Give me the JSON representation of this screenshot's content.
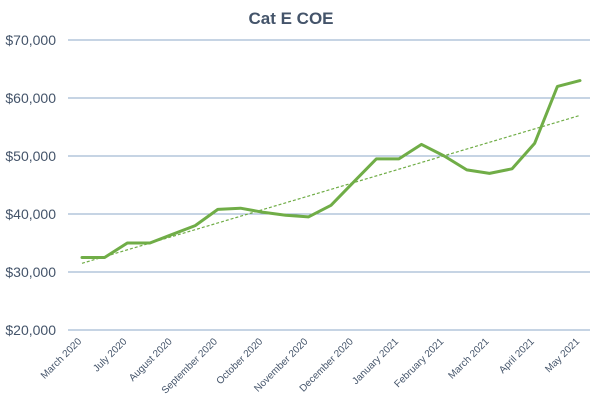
{
  "chart_data": {
    "type": "line",
    "title": "Cat E COE",
    "xlabel": "",
    "ylabel": "",
    "ylim": [
      20000,
      70000
    ],
    "yticks": [
      20000,
      30000,
      40000,
      50000,
      60000,
      70000
    ],
    "ytick_labels": [
      "$20,000",
      "$30,000",
      "$40,000",
      "$50,000",
      "$60,000",
      "$70,000"
    ],
    "grid": true,
    "legend": "none",
    "colors": {
      "series": "#70ad47",
      "trendline": "#70ad47",
      "grid": "#8ea9c9",
      "text": "#44546a"
    },
    "x_tick_labels": [
      "March 2020",
      "July 2020",
      "August 2020",
      "September 2020",
      "October 2020",
      "November 2020",
      "December 2020",
      "January 2021",
      "February 2021",
      "March 2021",
      "April 2021",
      "May 2021"
    ],
    "series": [
      {
        "values": [
          32500,
          32500,
          35000,
          35000,
          36500,
          38000,
          40800,
          41000,
          40300,
          39800,
          39500,
          41500,
          45500,
          49500,
          49500,
          52000,
          50000,
          47600,
          47000,
          47800,
          52200,
          62000,
          63000
        ]
      }
    ],
    "trendline": {
      "type": "linear",
      "style": "dashed",
      "values": [
        31500,
        57000
      ]
    }
  }
}
